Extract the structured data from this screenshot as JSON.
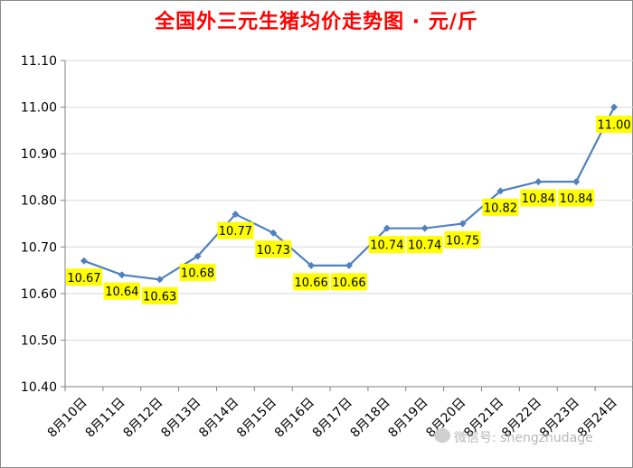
{
  "chart_data": {
    "type": "line",
    "title": "全国外三元生猪均价走势图 · 元/斤",
    "categories": [
      "8月10日",
      "8月11日",
      "8月12日",
      "8月13日",
      "8月14日",
      "8月15日",
      "8月16日",
      "8月17日",
      "8月18日",
      "8月19日",
      "8月20日",
      "8月21日",
      "8月22日",
      "8月23日",
      "8月24日"
    ],
    "values": [
      10.67,
      10.64,
      10.63,
      10.68,
      10.77,
      10.73,
      10.66,
      10.66,
      10.74,
      10.74,
      10.75,
      10.82,
      10.84,
      10.84,
      11.0
    ],
    "data_labels": [
      "10.67",
      "10.64",
      "10.63",
      "10.68",
      "10.77",
      "10.73",
      "10.66",
      "10.66",
      "10.74",
      "10.74",
      "10.75",
      "10.82",
      "10.84",
      "10.84",
      "11.00"
    ],
    "ylim": [
      10.4,
      11.1
    ],
    "yticks": [
      "10.40",
      "10.50",
      "10.60",
      "10.70",
      "10.80",
      "10.90",
      "11.00",
      "11.10"
    ],
    "xlabel": "",
    "ylabel": "",
    "grid": true,
    "colors": {
      "line": "#4f81bd",
      "label_bg": "#ffff00",
      "title": "#ff0000",
      "grid": "#d9d9d9"
    }
  },
  "watermark": "微信号: shengzhudage"
}
